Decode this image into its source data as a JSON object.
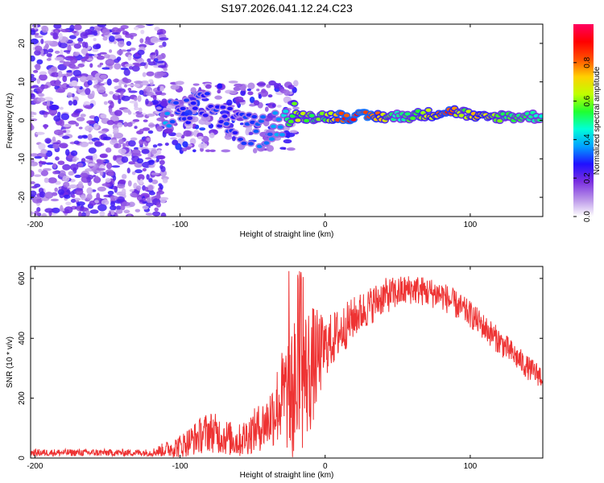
{
  "title": "S197.2026.041.12.24.C23",
  "chart_data": [
    {
      "type": "heatmap",
      "name": "spectrogram",
      "xlabel": "Height of straight line (km)",
      "ylabel": "Frequency (Hz)",
      "xlim": [
        -203,
        150
      ],
      "ylim": [
        -25,
        25
      ],
      "xticks": [
        -200,
        -100,
        0,
        100
      ],
      "yticks": [
        -20,
        -10,
        0,
        10,
        20
      ],
      "colorbar": {
        "label": "Normalized spectral amplitude",
        "range": [
          0,
          1
        ],
        "ticks": [
          "0.0",
          "0.2",
          "0.4",
          "0.6",
          "0.8"
        ],
        "colors": [
          "#ffffff",
          "#b892e8",
          "#7a2ee0",
          "#2010ff",
          "#00a0ff",
          "#00ffd8",
          "#20ff30",
          "#c0ff00",
          "#ffd000",
          "#ff5000",
          "#ff0000",
          "#ff0060"
        ]
      },
      "ridge": [
        {
          "x": -110,
          "f": 1.5,
          "a": 0.4
        },
        {
          "x": -100,
          "f": 1.0,
          "a": 0.3
        },
        {
          "x": -80,
          "f": 4.0,
          "a": 0.3
        },
        {
          "x": -60,
          "f": -2.0,
          "a": 0.3
        },
        {
          "x": -45,
          "f": -3.0,
          "a": 0.35
        },
        {
          "x": -30,
          "f": 0.0,
          "a": 0.4
        },
        {
          "x": -20,
          "f": 1.0,
          "a": 0.7
        },
        {
          "x": -10,
          "f": 1.0,
          "a": 0.6
        },
        {
          "x": 0,
          "f": 1.0,
          "a": 0.6
        },
        {
          "x": 10,
          "f": 1.0,
          "a": 0.9
        },
        {
          "x": 30,
          "f": 1.0,
          "a": 0.95
        },
        {
          "x": 50,
          "f": 1.0,
          "a": 0.5
        },
        {
          "x": 70,
          "f": 1.5,
          "a": 0.7
        },
        {
          "x": 85,
          "f": 2.5,
          "a": 0.9
        },
        {
          "x": 95,
          "f": 2.0,
          "a": 0.6
        },
        {
          "x": 105,
          "f": 0.5,
          "a": 0.8
        },
        {
          "x": 120,
          "f": 1.0,
          "a": 0.6
        },
        {
          "x": 150,
          "f": 1.0,
          "a": 0.5
        }
      ]
    },
    {
      "type": "line",
      "name": "snr",
      "xlabel": "Height of straight line (km)",
      "ylabel": "SNR (10 * v/v)",
      "xlim": [
        -203,
        150
      ],
      "ylim": [
        0,
        640
      ],
      "xticks": [
        -200,
        -100,
        0,
        100
      ],
      "yticks": [
        0,
        200,
        400,
        600
      ],
      "color": "#ee3333",
      "trend": [
        {
          "x": -203,
          "y": 18,
          "noise": 12
        },
        {
          "x": -120,
          "y": 18,
          "noise": 12
        },
        {
          "x": -100,
          "y": 40,
          "noise": 40
        },
        {
          "x": -80,
          "y": 90,
          "noise": 70
        },
        {
          "x": -60,
          "y": 55,
          "noise": 55
        },
        {
          "x": -40,
          "y": 120,
          "noise": 90
        },
        {
          "x": -30,
          "y": 200,
          "noise": 160
        },
        {
          "x": -20,
          "y": 230,
          "noise": 260
        },
        {
          "x": -10,
          "y": 300,
          "noise": 220
        },
        {
          "x": 0,
          "y": 370,
          "noise": 100
        },
        {
          "x": 20,
          "y": 470,
          "noise": 70
        },
        {
          "x": 40,
          "y": 540,
          "noise": 60
        },
        {
          "x": 60,
          "y": 565,
          "noise": 50
        },
        {
          "x": 80,
          "y": 545,
          "noise": 50
        },
        {
          "x": 100,
          "y": 480,
          "noise": 45
        },
        {
          "x": 120,
          "y": 390,
          "noise": 45
        },
        {
          "x": 140,
          "y": 300,
          "noise": 40
        },
        {
          "x": 150,
          "y": 270,
          "noise": 40
        }
      ]
    }
  ]
}
